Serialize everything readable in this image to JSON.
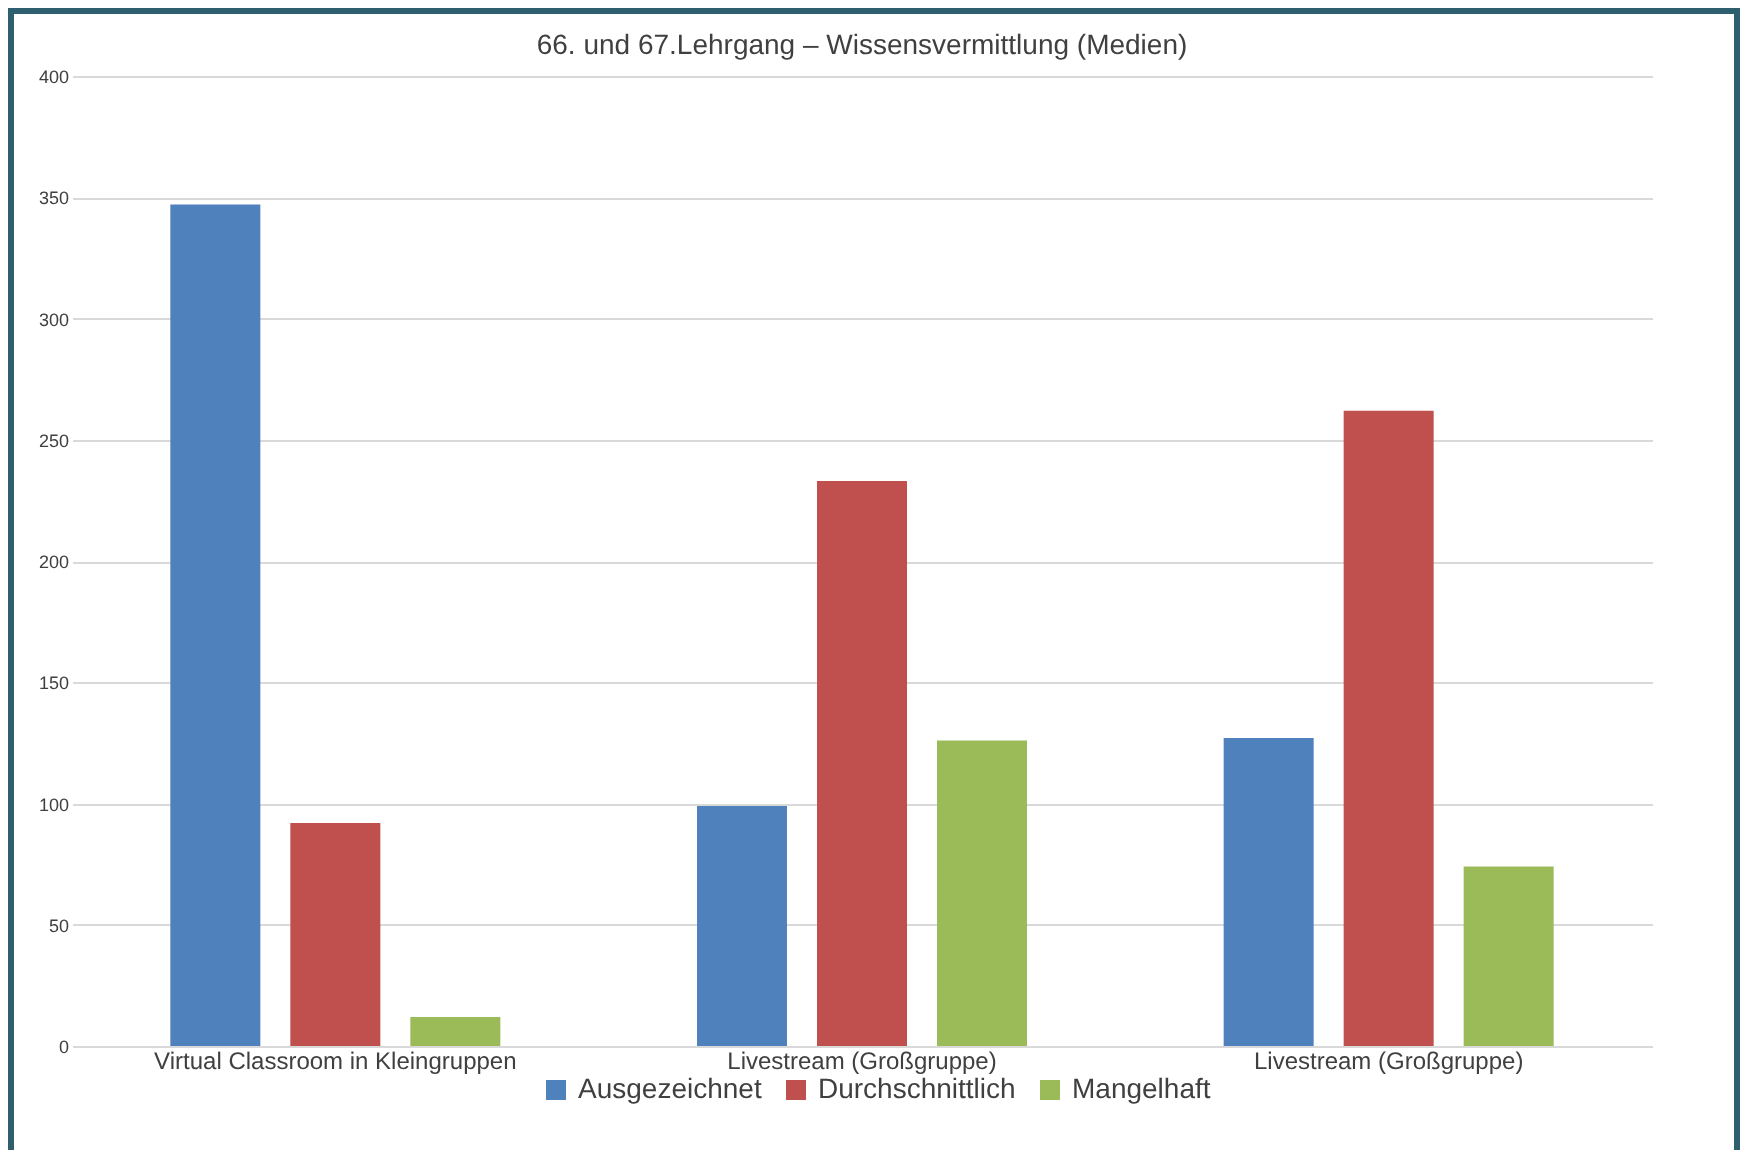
{
  "chart_data": {
    "type": "bar",
    "title": "66. und 67.Lehrgang – Wissensvermittlung (Medien)",
    "categories": [
      "Virtual Classroom in Kleingruppen",
      "Livestream (Großgruppe)",
      "Livestream (Großgruppe)"
    ],
    "series": [
      {
        "name": "Ausgezeichnet",
        "color": "#4f81bd",
        "values": [
          347,
          99,
          127
        ]
      },
      {
        "name": "Durchschnittlich",
        "color": "#c0504d",
        "values": [
          92,
          233,
          262
        ]
      },
      {
        "name": "Mangelhaft",
        "color": "#9bbb59",
        "values": [
          12,
          126,
          74
        ]
      }
    ],
    "ylim": [
      0,
      400
    ],
    "yticks": [
      0,
      50,
      100,
      150,
      200,
      250,
      300,
      350,
      400
    ],
    "grid": "y",
    "legend": "bottom"
  }
}
